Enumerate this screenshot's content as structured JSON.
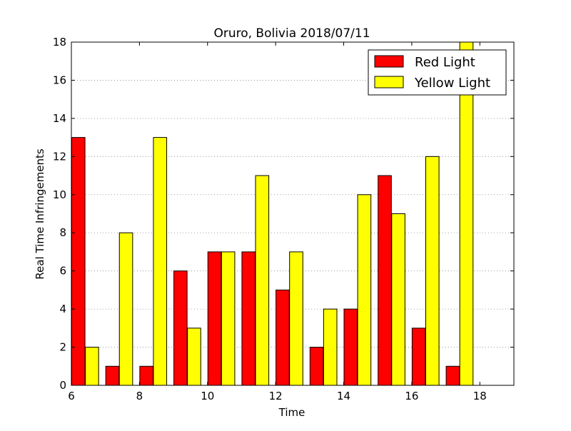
{
  "chart_data": {
    "type": "bar",
    "title": "Oruro, Bolivia 2018/07/11",
    "xlabel": "Time",
    "ylabel": "Real Time Infringements",
    "xlim": [
      6,
      19
    ],
    "ylim": [
      0,
      18
    ],
    "xticks": [
      6,
      8,
      10,
      12,
      14,
      16,
      18
    ],
    "yticks": [
      0,
      2,
      4,
      6,
      8,
      10,
      12,
      14,
      16,
      18
    ],
    "grid": "horizontal dotted",
    "legend_position": "top-right",
    "bar_width": 0.4,
    "series": [
      {
        "name": "Red Light",
        "color": "#ff0000",
        "x": [
          6,
          7,
          8,
          9,
          10,
          11,
          12,
          13,
          14,
          15,
          16,
          17
        ],
        "values": [
          13,
          1,
          1,
          6,
          7,
          7,
          5,
          2,
          4,
          11,
          3,
          1
        ]
      },
      {
        "name": "Yellow Light",
        "color": "#ffff00",
        "x": [
          6,
          7,
          8,
          9,
          10,
          11,
          12,
          13,
          14,
          15,
          16,
          17
        ],
        "values": [
          2,
          8,
          13,
          3,
          7,
          11,
          7,
          4,
          10,
          9,
          12,
          18
        ]
      }
    ]
  }
}
